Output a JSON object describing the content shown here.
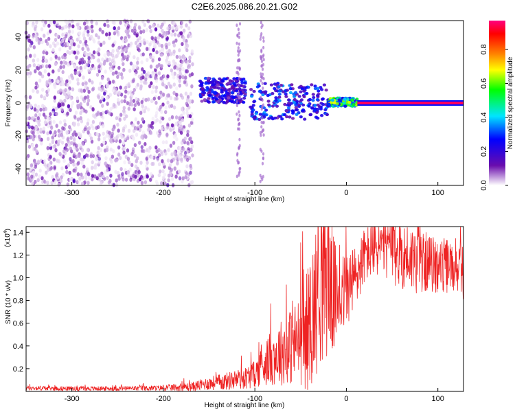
{
  "title": "C2E6.2025.086.20.21.G02",
  "chart_data": [
    {
      "type": "heatmap",
      "xlabel": "Height of straight line (km)",
      "ylabel": "Frequency (Hz)",
      "xlim": [
        -350,
        128
      ],
      "ylim": [
        -50,
        50
      ],
      "xticks": [
        -300,
        -200,
        -100,
        0,
        100
      ],
      "yticks": [
        -40,
        -20,
        0,
        20,
        40
      ],
      "colorbar": {
        "label": "Normalized spectral amplitude",
        "range": [
          0.0,
          0.97
        ],
        "ticks": [
          "0.0",
          "0.2",
          "0.4",
          "0.6",
          "0.8"
        ],
        "colors": [
          "#ffffff",
          "#6a0dad",
          "#0000ff",
          "#00e5ff",
          "#00ff00",
          "#ffff00",
          "#ff8000",
          "#ff0000",
          "#ff007f"
        ]
      },
      "regions": [
        {
          "x_range": [
            -350,
            -168
          ],
          "freq_range": [
            -50,
            50
          ],
          "amplitude": 0.05,
          "note": "scattered noise"
        },
        {
          "x_range": [
            -160,
            -110
          ],
          "freq_range": [
            0,
            15
          ],
          "amplitude": 0.25
        },
        {
          "x_range": [
            -105,
            -20
          ],
          "freq_range": [
            -10,
            12
          ],
          "amplitude": 0.3
        },
        {
          "x_range": [
            -20,
            12
          ],
          "freq_range": [
            -2,
            3
          ],
          "amplitude": 0.55
        },
        {
          "x_range": [
            12,
            128
          ],
          "freq_range": [
            -0.5,
            0.5
          ],
          "amplitude": 0.95
        }
      ]
    },
    {
      "type": "line",
      "xlabel": "Height of straight line (km)",
      "ylabel": "SNR (10 * v/v)",
      "yscale_label": "(x10",
      "yscale_exponent": "4",
      "xlim": [
        -350,
        128
      ],
      "ylim": [
        0,
        14500
      ],
      "xticks": [
        -300,
        -200,
        -100,
        0,
        100
      ],
      "yticks": [
        0.2,
        0.4,
        0.6,
        0.8,
        1.0,
        1.2,
        1.4
      ],
      "ytick_labels": [
        "0.2",
        "0.4",
        "0.6",
        "0.8",
        "1.0",
        "1.2",
        "1.4"
      ],
      "color": "#ee2222",
      "series": [
        {
          "x": [
            -350,
            -300,
            -250,
            -200,
            -170,
            -150,
            -130,
            -110,
            -100,
            -90,
            -80,
            -70,
            -60,
            -50,
            -45,
            -40,
            -30,
            -20,
            -15,
            -10,
            0,
            10,
            20,
            30,
            40,
            50,
            60,
            70,
            80,
            90,
            100,
            110,
            120,
            128
          ],
          "values": [
            300,
            250,
            250,
            300,
            400,
            700,
            900,
            1200,
            1500,
            2500,
            3000,
            3500,
            4000,
            4500,
            5000,
            6000,
            9000,
            11000,
            9000,
            8000,
            9000,
            10000,
            12000,
            12500,
            12700,
            12500,
            12000,
            11800,
            11500,
            11300,
            11000,
            11000,
            10800,
            10500
          ],
          "spread": [
            200,
            200,
            200,
            250,
            400,
            600,
            800,
            1000,
            1200,
            2000,
            2500,
            3000,
            3500,
            4000,
            5000,
            6000,
            7000,
            8000,
            6000,
            3500,
            3500,
            3000,
            2500,
            2500,
            2500,
            3500,
            3000,
            3000,
            3000,
            2500,
            2500,
            2500,
            2000,
            2500
          ]
        }
      ]
    }
  ]
}
